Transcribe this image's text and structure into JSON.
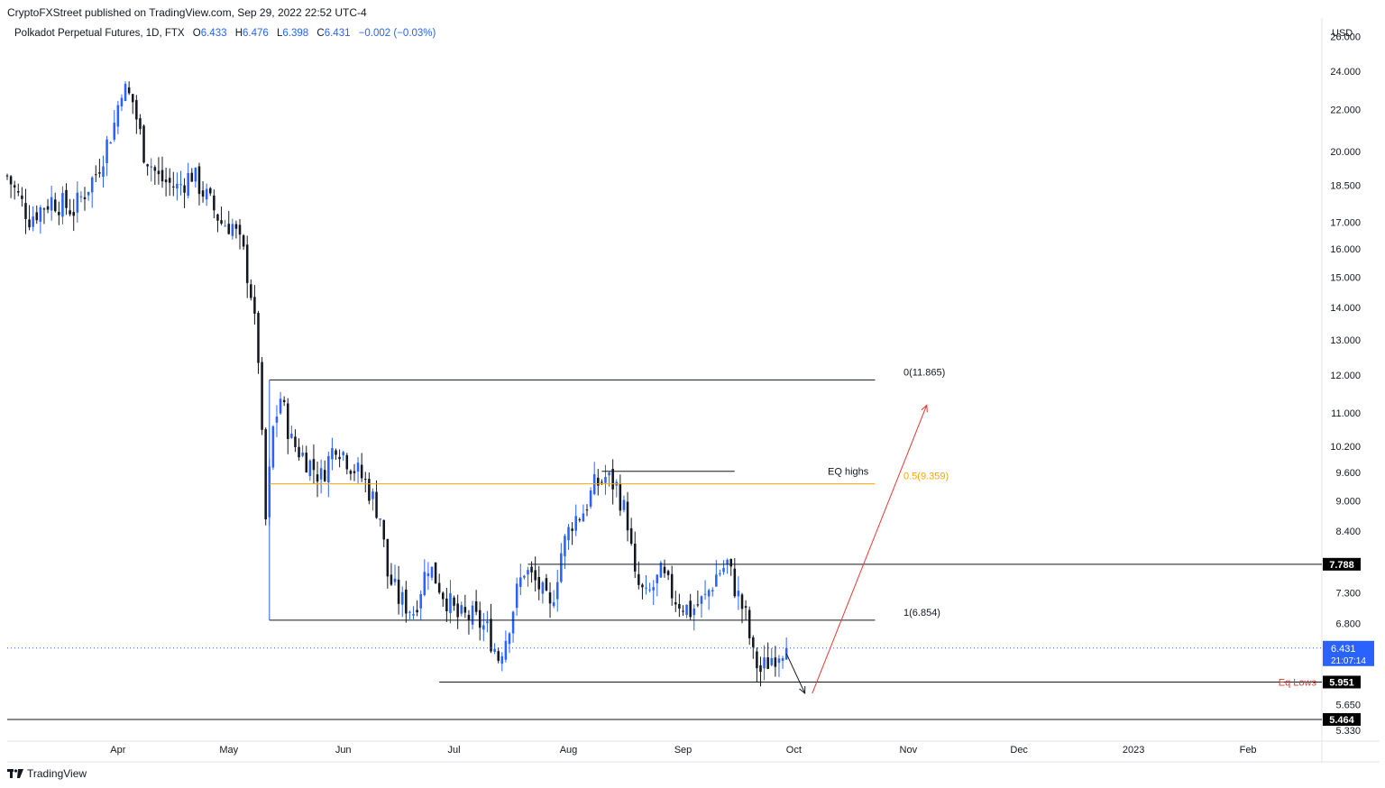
{
  "header": {
    "published_text": "CryptoFXStreet published on TradingView.com, Sep 29, 2022 22:52 UTC-4"
  },
  "instrument": {
    "title": "Polkadot Perpetual Futures, 1D, FTX",
    "open_label": "O",
    "open": "6.433",
    "high_label": "H",
    "high": "6.476",
    "low_label": "L",
    "low": "6.398",
    "close_label": "C",
    "close": "6.431",
    "change": "−0.002 (−0.03%)"
  },
  "currency": "USD",
  "footer": {
    "brand": "TradingView"
  },
  "colors": {
    "up": "#2962ff",
    "down": "#131722",
    "fib_mid": "#f7a600",
    "annotation_red": "#e53935",
    "price_tag": "#2962ff",
    "level_tag": "#000000"
  },
  "chart_data": {
    "type": "candlestick",
    "y_scale": "log",
    "ylim": [
      5.2,
      27.0
    ],
    "y_ticks": [
      "26.000",
      "24.000",
      "22.000",
      "20.000",
      "18.500",
      "17.000",
      "16.000",
      "15.000",
      "14.000",
      "13.000",
      "12.000",
      "11.000",
      "10.200",
      "9.600",
      "9.000",
      "8.400",
      "7.300",
      "6.800",
      "5.650",
      "5.330"
    ],
    "x_ticks": [
      "Apr",
      "May",
      "Jun",
      "Jul",
      "Aug",
      "Sep",
      "Oct",
      "Nov",
      "Dec",
      "2023",
      "Feb"
    ],
    "x_tick_dates": [
      "2022-04-01",
      "2022-05-01",
      "2022-06-01",
      "2022-07-01",
      "2022-08-01",
      "2022-09-01",
      "2022-10-01",
      "2022-11-01",
      "2022-12-01",
      "2023-01-01",
      "2023-02-01"
    ],
    "x_range": [
      "2022-03-02",
      "2023-02-21"
    ],
    "ohlc_path": [
      [
        "2022-03-02",
        18.9
      ],
      [
        "2022-03-08",
        17.2
      ],
      [
        "2022-03-14",
        17.9
      ],
      [
        "2022-03-20",
        17.5
      ],
      [
        "2022-03-26",
        19.0
      ],
      [
        "2022-03-31",
        21.3
      ],
      [
        "2022-04-02",
        23.2
      ],
      [
        "2022-04-05",
        22.4
      ],
      [
        "2022-04-08",
        20.0
      ],
      [
        "2022-04-12",
        18.8
      ],
      [
        "2022-04-17",
        18.4
      ],
      [
        "2022-04-21",
        19.0
      ],
      [
        "2022-04-25",
        18.0
      ],
      [
        "2022-04-29",
        17.0
      ],
      [
        "2022-05-02",
        16.9
      ],
      [
        "2022-05-05",
        15.8
      ],
      [
        "2022-05-07",
        14.5
      ],
      [
        "2022-05-09",
        12.5
      ],
      [
        "2022-05-10",
        10.3
      ],
      [
        "2022-05-11",
        8.6
      ],
      [
        "2022-05-13",
        10.6
      ],
      [
        "2022-05-15",
        11.4
      ],
      [
        "2022-05-18",
        10.3
      ],
      [
        "2022-05-22",
        9.9
      ],
      [
        "2022-05-26",
        9.5
      ],
      [
        "2022-05-30",
        10.3
      ],
      [
        "2022-06-03",
        9.8
      ],
      [
        "2022-06-07",
        9.4
      ],
      [
        "2022-06-11",
        8.7
      ],
      [
        "2022-06-13",
        7.6
      ],
      [
        "2022-06-16",
        7.2
      ],
      [
        "2022-06-20",
        7.0
      ],
      [
        "2022-06-24",
        7.8
      ],
      [
        "2022-06-28",
        7.3
      ],
      [
        "2022-07-02",
        6.9
      ],
      [
        "2022-07-06",
        6.9
      ],
      [
        "2022-07-10",
        6.7
      ],
      [
        "2022-07-13",
        6.3
      ],
      [
        "2022-07-15",
        6.6
      ],
      [
        "2022-07-18",
        7.3
      ],
      [
        "2022-07-20",
        7.7
      ],
      [
        "2022-07-24",
        7.4
      ],
      [
        "2022-07-27",
        7.0
      ],
      [
        "2022-07-30",
        8.0
      ],
      [
        "2022-08-02",
        8.6
      ],
      [
        "2022-08-05",
        8.8
      ],
      [
        "2022-08-08",
        9.3
      ],
      [
        "2022-08-11",
        9.5
      ],
      [
        "2022-08-14",
        9.3
      ],
      [
        "2022-08-17",
        8.6
      ],
      [
        "2022-08-19",
        7.5
      ],
      [
        "2022-08-22",
        7.2
      ],
      [
        "2022-08-26",
        7.6
      ],
      [
        "2022-08-30",
        7.2
      ],
      [
        "2022-09-03",
        7.0
      ],
      [
        "2022-09-07",
        7.2
      ],
      [
        "2022-09-10",
        7.6
      ],
      [
        "2022-09-13",
        7.8
      ],
      [
        "2022-09-15",
        7.4
      ],
      [
        "2022-09-18",
        6.9
      ],
      [
        "2022-09-20",
        6.3
      ],
      [
        "2022-09-22",
        6.1
      ],
      [
        "2022-09-25",
        6.3
      ],
      [
        "2022-09-28",
        6.45
      ],
      [
        "2022-09-29",
        6.431
      ]
    ],
    "levels": [
      {
        "label": "0(11.865)",
        "price": 11.865,
        "from": "2022-05-12",
        "to": "2022-10-23"
      },
      {
        "label": "0.5(9.359)",
        "price": 9.359,
        "from": "2022-05-12",
        "to": "2022-10-23",
        "color": "#f7a600"
      },
      {
        "label": "1(6.854)",
        "price": 6.854,
        "from": "2022-05-12",
        "to": "2022-10-23"
      },
      {
        "label": "EQ highs",
        "price": 9.63,
        "from": "2022-08-10",
        "to": "2022-09-15"
      },
      {
        "label": "Eq Lows",
        "price": 5.951,
        "from": "2022-06-27",
        "to": "2023-02-21"
      },
      {
        "label": "",
        "price": 7.788,
        "from": "2022-07-21",
        "to": "2023-02-21"
      },
      {
        "label": "",
        "price": 5.464,
        "from": "2022-03-02",
        "to": "2023-02-21"
      }
    ],
    "price_tags": [
      {
        "value": "6.431",
        "sub": "21:07:14",
        "price": 6.431,
        "kind": "current"
      },
      {
        "value": "7.788",
        "price": 7.788,
        "kind": "level"
      },
      {
        "value": "5.951",
        "price": 5.951,
        "kind": "level",
        "label": "Eq Lows"
      },
      {
        "value": "5.464",
        "price": 5.464,
        "kind": "level"
      }
    ],
    "arrows": [
      {
        "from": [
          "2022-09-29",
          6.35
        ],
        "to": [
          "2022-10-04",
          5.8
        ],
        "color": "#131722"
      },
      {
        "from": [
          "2022-10-06",
          5.8
        ],
        "to": [
          "2022-11-06",
          11.2
        ],
        "color": "#e53935"
      }
    ]
  }
}
